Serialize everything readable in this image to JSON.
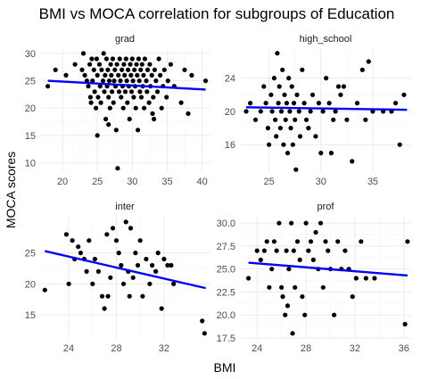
{
  "chart_data": {
    "type": "scatter",
    "title": "BMI vs MOCA correlation for subgroups of Education",
    "xlabel": "BMI",
    "ylabel": "MOCA scores",
    "regression_line_color": "#0000ff",
    "point_color": "#000000",
    "grid": true,
    "panels": [
      {
        "name": "grad",
        "xlim": [
          16.8,
          41.2
        ],
        "ylim": [
          8.3,
          30.8
        ],
        "xticks": [
          20,
          25,
          30,
          35,
          40
        ],
        "yticks": [
          10,
          15,
          20,
          25,
          30
        ],
        "fit": [
          [
            17.9,
            25.0
          ],
          [
            40.5,
            23.4
          ]
        ],
        "points": [
          [
            17.9,
            24
          ],
          [
            19,
            27
          ],
          [
            20.5,
            26
          ],
          [
            21.8,
            28
          ],
          [
            22.8,
            27
          ],
          [
            23,
            30
          ],
          [
            23.2,
            26
          ],
          [
            23.5,
            25
          ],
          [
            23.7,
            24
          ],
          [
            23.9,
            28
          ],
          [
            24,
            22
          ],
          [
            24.2,
            29
          ],
          [
            24.3,
            25
          ],
          [
            24.5,
            27
          ],
          [
            24.6,
            23
          ],
          [
            24.8,
            20
          ],
          [
            24.9,
            29
          ],
          [
            25,
            26
          ],
          [
            25.1,
            22
          ],
          [
            25.3,
            28
          ],
          [
            25.4,
            24
          ],
          [
            25.5,
            21
          ],
          [
            25.6,
            27
          ],
          [
            25.8,
            25
          ],
          [
            25.9,
            30
          ],
          [
            26,
            23
          ],
          [
            26.1,
            26
          ],
          [
            26.2,
            18
          ],
          [
            26.3,
            29
          ],
          [
            26.4,
            24
          ],
          [
            26.5,
            27
          ],
          [
            26.6,
            22
          ],
          [
            26.7,
            25
          ],
          [
            26.8,
            20
          ],
          [
            26.9,
            28
          ],
          [
            27,
            26
          ],
          [
            27.1,
            23
          ],
          [
            27.2,
            29
          ],
          [
            27.3,
            21
          ],
          [
            27.4,
            25
          ],
          [
            27.5,
            27
          ],
          [
            27.6,
            24
          ],
          [
            27.7,
            16
          ],
          [
            27.8,
            28
          ],
          [
            27.9,
            9
          ],
          [
            28,
            26
          ],
          [
            28.1,
            23
          ],
          [
            28.2,
            29
          ],
          [
            28.3,
            25
          ],
          [
            28.4,
            22
          ],
          [
            28.5,
            27
          ],
          [
            28.6,
            24
          ],
          [
            28.7,
            20
          ],
          [
            28.8,
            28
          ],
          [
            28.9,
            26
          ],
          [
            29,
            23
          ],
          [
            29.1,
            29
          ],
          [
            29.2,
            25
          ],
          [
            29.3,
            21
          ],
          [
            29.4,
            27
          ],
          [
            29.5,
            24
          ],
          [
            29.6,
            18
          ],
          [
            29.7,
            28
          ],
          [
            29.8,
            26
          ],
          [
            29.9,
            23
          ],
          [
            30,
            29
          ],
          [
            30.1,
            25
          ],
          [
            30.2,
            22
          ],
          [
            30.3,
            27
          ],
          [
            30.4,
            24
          ],
          [
            30.5,
            20
          ],
          [
            30.6,
            28
          ],
          [
            30.7,
            26
          ],
          [
            30.8,
            16
          ],
          [
            30.9,
            29
          ],
          [
            31,
            25
          ],
          [
            31.1,
            23
          ],
          [
            31.2,
            27
          ],
          [
            31.3,
            22
          ],
          [
            31.4,
            28
          ],
          [
            31.5,
            24
          ],
          [
            31.6,
            26
          ],
          [
            31.7,
            20
          ],
          [
            31.8,
            29
          ],
          [
            32,
            25
          ],
          [
            32.1,
            23
          ],
          [
            32.2,
            27
          ],
          [
            32.4,
            21
          ],
          [
            32.5,
            28
          ],
          [
            32.6,
            24
          ],
          [
            32.8,
            26
          ],
          [
            33,
            22
          ],
          [
            33.1,
            18
          ],
          [
            33.2,
            27
          ],
          [
            33.4,
            25
          ],
          [
            33.6,
            23
          ],
          [
            33.8,
            29
          ],
          [
            34,
            26
          ],
          [
            34.2,
            20
          ],
          [
            34.4,
            24
          ],
          [
            34.6,
            27
          ],
          [
            34.9,
            22
          ],
          [
            35.1,
            25
          ],
          [
            35.5,
            28
          ],
          [
            36,
            24
          ],
          [
            37,
            21
          ],
          [
            37.5,
            27
          ],
          [
            38,
            19
          ],
          [
            38.5,
            26
          ],
          [
            40.5,
            25
          ],
          [
            25,
            15
          ],
          [
            26.6,
            17
          ],
          [
            24.1,
            21
          ],
          [
            32.9,
            19
          ]
        ]
      },
      {
        "name": "high_school",
        "xlim": [
          22.2,
          38.7
        ],
        "ylim": [
          12.7,
          27.5
        ],
        "xticks": [
          25,
          30,
          35
        ],
        "yticks": [
          16,
          20,
          24
        ],
        "fit": [
          [
            22.8,
            20.5
          ],
          [
            38.3,
            20.2
          ]
        ],
        "points": [
          [
            22.8,
            20
          ],
          [
            23.2,
            21
          ],
          [
            23.7,
            19
          ],
          [
            24.2,
            20
          ],
          [
            24.5,
            23
          ],
          [
            24.7,
            21
          ],
          [
            24.9,
            18
          ],
          [
            25,
            16
          ],
          [
            25.2,
            22
          ],
          [
            25.3,
            20
          ],
          [
            25.5,
            24
          ],
          [
            25.6,
            19
          ],
          [
            25.7,
            17
          ],
          [
            25.8,
            27
          ],
          [
            25.9,
            21
          ],
          [
            26,
            23
          ],
          [
            26.1,
            18
          ],
          [
            26.2,
            20
          ],
          [
            26.3,
            25
          ],
          [
            26.4,
            16
          ],
          [
            26.5,
            22
          ],
          [
            26.6,
            19
          ],
          [
            26.7,
            21
          ],
          [
            26.8,
            15
          ],
          [
            26.9,
            24
          ],
          [
            27,
            20
          ],
          [
            27.1,
            18
          ],
          [
            27.2,
            23
          ],
          [
            27.3,
            16
          ],
          [
            27.4,
            21
          ],
          [
            27.5,
            19
          ],
          [
            27.6,
            13
          ],
          [
            27.7,
            22
          ],
          [
            27.9,
            20
          ],
          [
            28,
            17
          ],
          [
            28.2,
            25
          ],
          [
            28.4,
            21
          ],
          [
            28.6,
            19
          ],
          [
            28.8,
            18
          ],
          [
            29,
            20
          ],
          [
            29.2,
            22
          ],
          [
            29.5,
            17
          ],
          [
            29.8,
            21
          ],
          [
            30,
            15
          ],
          [
            30.2,
            20
          ],
          [
            30.5,
            24
          ],
          [
            30.8,
            21
          ],
          [
            31,
            15
          ],
          [
            31.2,
            19
          ],
          [
            31.4,
            20
          ],
          [
            31.7,
            23
          ],
          [
            31.9,
            22
          ],
          [
            32.2,
            23
          ],
          [
            32.5,
            19
          ],
          [
            33,
            14
          ],
          [
            33.5,
            21
          ],
          [
            34,
            25
          ],
          [
            34.3,
            19
          ],
          [
            34.6,
            26
          ],
          [
            35,
            20
          ],
          [
            36,
            20
          ],
          [
            36.8,
            20
          ],
          [
            37.2,
            21
          ],
          [
            37.6,
            16
          ],
          [
            38,
            22
          ]
        ]
      },
      {
        "name": "inter",
        "xlim": [
          21.6,
          35.9
        ],
        "ylim": [
          11.1,
          31.0
        ],
        "xticks": [
          24,
          28,
          32
        ],
        "yticks": [
          15,
          20,
          25
        ],
        "fit": [
          [
            22.0,
            25.3
          ],
          [
            35.5,
            19.3
          ]
        ],
        "points": [
          [
            22,
            19
          ],
          [
            23.8,
            28
          ],
          [
            24,
            20
          ],
          [
            24.3,
            27
          ],
          [
            24.5,
            24
          ],
          [
            24.8,
            26
          ],
          [
            25,
            25
          ],
          [
            25.3,
            24
          ],
          [
            25.5,
            22
          ],
          [
            25.7,
            27
          ],
          [
            26,
            20
          ],
          [
            26.2,
            24
          ],
          [
            26.5,
            22
          ],
          [
            26.8,
            18
          ],
          [
            27,
            16
          ],
          [
            27.2,
            28
          ],
          [
            27.3,
            18
          ],
          [
            27.5,
            21
          ],
          [
            27.7,
            29
          ],
          [
            28,
            27
          ],
          [
            28.2,
            25
          ],
          [
            28.4,
            23
          ],
          [
            28.6,
            20
          ],
          [
            28.8,
            30
          ],
          [
            29,
            22
          ],
          [
            29.1,
            18
          ],
          [
            29.2,
            29
          ],
          [
            29.4,
            21
          ],
          [
            29.6,
            25
          ],
          [
            29.8,
            23
          ],
          [
            30,
            27
          ],
          [
            30.2,
            18
          ],
          [
            30.5,
            24
          ],
          [
            30.8,
            20
          ],
          [
            31,
            23
          ],
          [
            31.3,
            22
          ],
          [
            31.5,
            25
          ],
          [
            31.8,
            16
          ],
          [
            32,
            24
          ],
          [
            32.3,
            23
          ],
          [
            32.6,
            23
          ],
          [
            32.8,
            20
          ],
          [
            35.2,
            14
          ],
          [
            35.4,
            12
          ]
        ]
      },
      {
        "name": "prof",
        "xlim": [
          22.6,
          36.6
        ],
        "ylim": [
          17.4,
          30.8
        ],
        "xticks": [
          24,
          28,
          32,
          36
        ],
        "yticks": [
          17.5,
          20.0,
          22.5,
          25.0,
          27.5,
          30.0
        ],
        "fit": [
          [
            23.3,
            25.7
          ],
          [
            36.3,
            24.3
          ]
        ],
        "points": [
          [
            23.3,
            24
          ],
          [
            24,
            27
          ],
          [
            24.3,
            26
          ],
          [
            24.6,
            27
          ],
          [
            24.8,
            28
          ],
          [
            25,
            23
          ],
          [
            25.2,
            25
          ],
          [
            25.4,
            28
          ],
          [
            25.6,
            27
          ],
          [
            25.8,
            30
          ],
          [
            26,
            23
          ],
          [
            26.1,
            22
          ],
          [
            26.3,
            20
          ],
          [
            26.4,
            27
          ],
          [
            26.5,
            21
          ],
          [
            26.6,
            25
          ],
          [
            26.8,
            30
          ],
          [
            26.9,
            18
          ],
          [
            27,
            27
          ],
          [
            27.1,
            23
          ],
          [
            27.3,
            28
          ],
          [
            27.5,
            26
          ],
          [
            27.7,
            22
          ],
          [
            27.9,
            20
          ],
          [
            28,
            30
          ],
          [
            28.2,
            27
          ],
          [
            28.4,
            28
          ],
          [
            28.6,
            26
          ],
          [
            28.8,
            29
          ],
          [
            29,
            25
          ],
          [
            29.2,
            30
          ],
          [
            29.4,
            23
          ],
          [
            29.6,
            28
          ],
          [
            29.8,
            27
          ],
          [
            30,
            25
          ],
          [
            30.3,
            20
          ],
          [
            30.6,
            28
          ],
          [
            30.9,
            25
          ],
          [
            31.2,
            27
          ],
          [
            31.5,
            25
          ],
          [
            31.8,
            22
          ],
          [
            32.1,
            24
          ],
          [
            32.5,
            28
          ],
          [
            32.9,
            24
          ],
          [
            33.6,
            24
          ],
          [
            36.1,
            19
          ],
          [
            36.3,
            28
          ]
        ]
      }
    ]
  }
}
